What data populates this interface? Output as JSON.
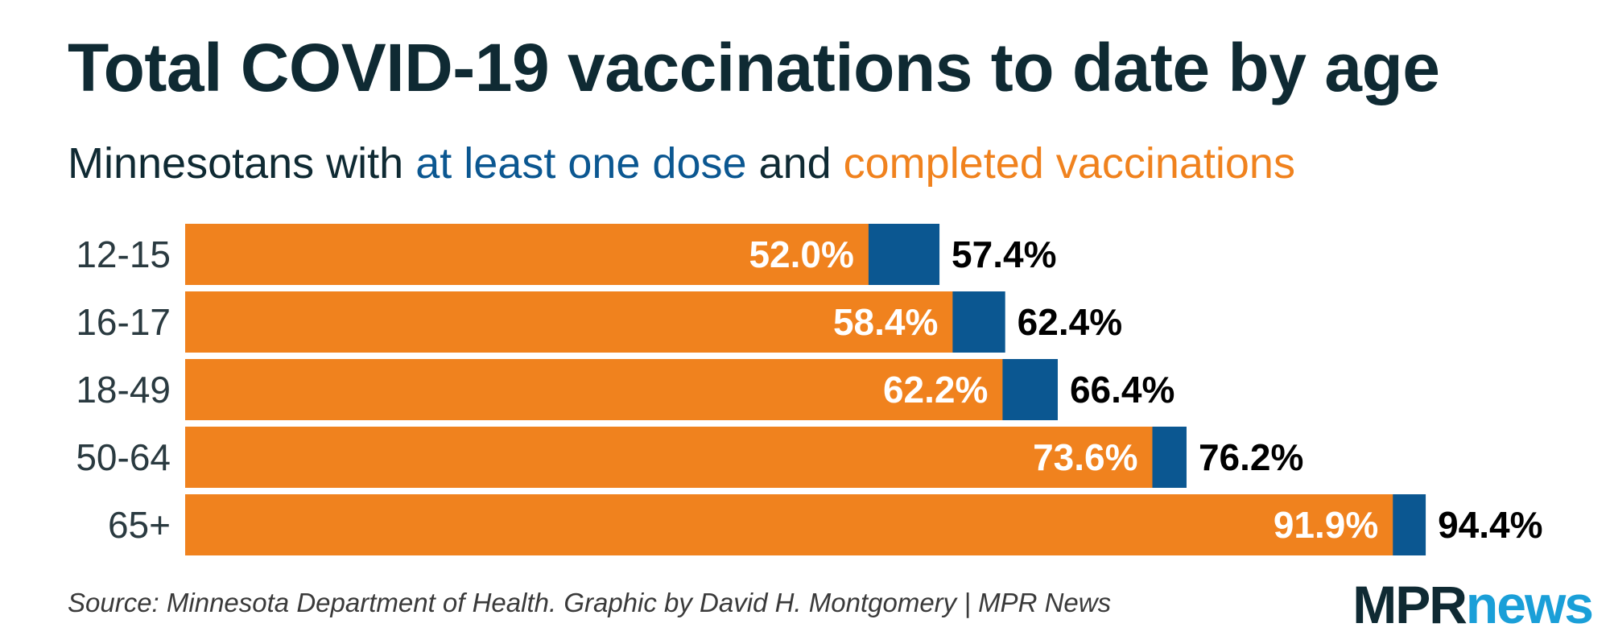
{
  "title": "Total COVID-19 vaccinations to date by age",
  "subtitle": {
    "prefix": "Minnesotans with ",
    "dose": "at least one dose",
    "middle": " and ",
    "completed": "completed vaccinations"
  },
  "footer": "Source: Minnesota Department of Health. Graphic by David H. Montgomery | MPR News",
  "logo": {
    "part1": "MPR",
    "part2": "news"
  },
  "colors": {
    "completed": "#f0821e",
    "dose": "#0b5791",
    "title": "#0f2a33",
    "logo_news": "#1a9fd8"
  },
  "chart_data": {
    "type": "bar",
    "orientation": "horizontal",
    "categories": [
      "12-15",
      "16-17",
      "18-49",
      "50-64",
      "65+"
    ],
    "series": [
      {
        "name": "completed vaccinations",
        "values": [
          52.0,
          58.4,
          62.2,
          73.6,
          91.9
        ],
        "labels": [
          "52.0%",
          "58.4%",
          "62.2%",
          "73.6%",
          "91.9%"
        ]
      },
      {
        "name": "at least one dose",
        "values": [
          57.4,
          62.4,
          66.4,
          76.2,
          94.4
        ],
        "labels": [
          "57.4%",
          "62.4%",
          "66.4%",
          "76.2%",
          "94.4%"
        ]
      }
    ],
    "xlim": [
      0,
      100
    ],
    "grid": false,
    "legend": "none"
  }
}
